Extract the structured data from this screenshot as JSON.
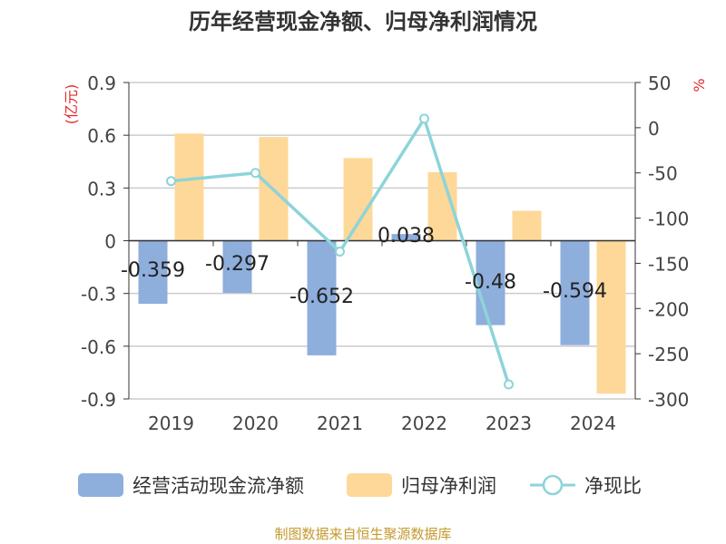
{
  "title": "历年经营现金净额、归母净利润情况",
  "footer": "制图数据来自恒生聚源数据库",
  "colors": {
    "cashflow": "#8eaedc",
    "profit": "#fed898",
    "ratio": "#8dd4d9",
    "axis_unit": "#e02b2b"
  },
  "chart_data": {
    "type": "bar",
    "categories": [
      "2019",
      "2020",
      "2021",
      "2022",
      "2023",
      "2024"
    ],
    "series": [
      {
        "name": "经营活动现金流净额",
        "type": "bar",
        "axis": "left",
        "values": [
          -0.359,
          -0.297,
          -0.652,
          0.038,
          -0.48,
          -0.594
        ],
        "labels": [
          "-0.359",
          "-0.297",
          "-0.652",
          "0.038",
          "-0.48",
          "-0.594"
        ]
      },
      {
        "name": "归母净利润",
        "type": "bar",
        "axis": "left",
        "values": [
          0.61,
          0.59,
          0.47,
          0.39,
          0.17,
          -0.87
        ]
      },
      {
        "name": "净现比",
        "type": "line",
        "axis": "right",
        "values": [
          -59,
          -50,
          -137,
          10,
          -284,
          null
        ]
      }
    ],
    "left_axis": {
      "unit": "(亿元)",
      "ylim": [
        -0.9,
        0.9
      ],
      "ticks": [
        "0.9",
        "0.6",
        "0.3",
        "0",
        "-0.3",
        "-0.6",
        "-0.9"
      ]
    },
    "right_axis": {
      "unit": "%",
      "ylim": [
        -300,
        50
      ],
      "ticks": [
        "50",
        "0",
        "-50",
        "-100",
        "-150",
        "-200",
        "-250",
        "-300"
      ]
    },
    "grid": true,
    "legend_position": "bottom"
  }
}
